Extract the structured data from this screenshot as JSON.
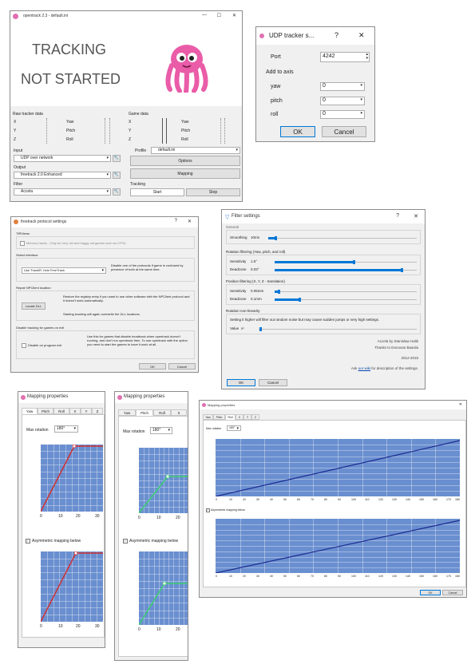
{
  "main": {
    "title": "opentrack 2.3 - default.ini",
    "status_line1": "TRACKING",
    "status_line2": "NOT STARTED",
    "raw_tracker_title": "Raw tracker data",
    "game_data_title": "Game data",
    "axes": [
      "X",
      "Y",
      "Z"
    ],
    "rot": [
      "Yaw",
      "Pitch",
      "Roll"
    ],
    "input_label": "Input",
    "input_value": "UDP over network",
    "output_label": "Output",
    "output_value": "freetrack 2.0 Enhanced",
    "filter_label": "Filter",
    "filter_value": "Accela",
    "profile_label": "Profile",
    "profile_value": "default.ini",
    "options_label": "Options",
    "mapping_label": "Mapping",
    "tracking_label": "Tracking",
    "start_label": "Start",
    "stop_label": "Stop"
  },
  "udp": {
    "title": "UDP tracker s...",
    "help": "?",
    "close": "✕",
    "port_label": "Port",
    "port_value": "4242",
    "add_to_axis": "Add to axis",
    "rows": [
      {
        "label": "yaw",
        "value": "0"
      },
      {
        "label": "pitch",
        "value": "0"
      },
      {
        "label": "roll",
        "value": "0"
      }
    ],
    "ok": "OK",
    "cancel": "Cancel"
  },
  "freetrack": {
    "title": "freetrack protocol settings",
    "trackir_title": "TIRViews",
    "trackir_option": "Memory hacks - Only for very old and buggy old games such as CFS3.",
    "select_title": "Select interface",
    "select_value": "Use TrackIR, hide FreeTrack",
    "select_desc": "Disable one of the protocols if game is confused by presence of both at the same time.",
    "repair_title": "Repair NPClient location",
    "repair_desc": "Restore the registry entry if you want to use other software with the NPClient protocol and it doesn't work automatically.",
    "repair_btn": "Locate DLL",
    "repair_note": "Starting tracking will again overwrite the DLL locations.",
    "disable_title": "Disable tracking for games on exit",
    "disable_option": "Disable on program exit",
    "disable_desc": "Use this for games that disable headtrack when opentrack doesn't running, and don't run opentrack then. To use opentrack with the option you need to start the games to have it work at all.",
    "ok": "OK",
    "cancel": "Cancel"
  },
  "filter": {
    "title": "Filter settings",
    "general": "General",
    "smoothing_label": "Smoothing",
    "smoothing_value": "10ms",
    "rotation_title": "Rotation filtering (Yaw, pitch, and roll)",
    "rot_sens_label": "Sensitivity",
    "rot_sens_value": "1.5°",
    "rot_dead_label": "Deadzone",
    "rot_dead_value": "0.03°",
    "pos_title": "Position filtering (X, Y, Z - translation)",
    "pos_sens_label": "Sensitivity",
    "pos_sens_value": "0.05mm",
    "pos_dead_label": "Deadzone",
    "pos_dead_value": "0.1mm",
    "nonlin_title": "Rotation non-linearity",
    "nonlin_desc": "Setting it higher will filter out random noise but may cause sudden jumps or very high settings.",
    "nonlin_label": "Value",
    "nonlin_value": "x¹",
    "credit1": "Accela by Stanislaw Halik",
    "credit2": "Thanks to Donovan Baarda",
    "year": "2012-2015",
    "see_prefix": "Ask",
    "see_link": "our wiki",
    "see_suffix": "for description of the settings.",
    "ok": "OK",
    "cancel": "Cancel"
  },
  "mapping": {
    "title": "Mapping properties",
    "tabs": [
      "Yaw",
      "Pitch",
      "Roll",
      "X",
      "Y",
      "Z"
    ],
    "max_rotation_label": "Max rotation",
    "max_rotation_value": "180°",
    "asym_label": "Asymmetric mapping below",
    "x_ticks": [
      "0",
      "10",
      "20",
      "30"
    ],
    "big_x_ticks": [
      "0",
      "10",
      "20",
      "30",
      "40",
      "50",
      "60",
      "70",
      "80",
      "90",
      "100",
      "110",
      "120",
      "130",
      "140",
      "150",
      "160",
      "170",
      "180"
    ],
    "ok": "OK",
    "cancel": "Cancel"
  }
}
